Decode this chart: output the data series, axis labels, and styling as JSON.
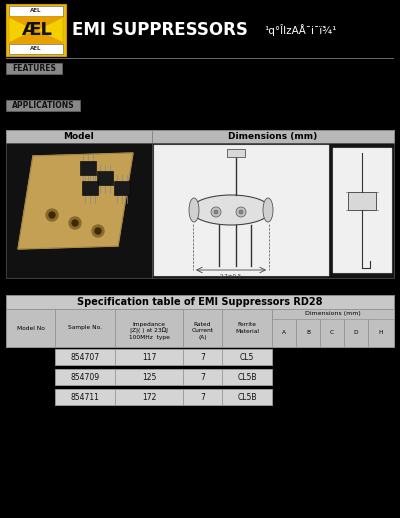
{
  "bg_color": "#000000",
  "header_title": "EMI SUPPRESSORS",
  "header_subtitle": "¹q°ÎIzAÅ¯i¯ï¾¹",
  "features_label": "FEATURES",
  "applications_label": "APPLICATIONS",
  "model_label": "Model",
  "dimensions_label": "Dimensions (mm)",
  "table_title": "Specification table of EMI Suppressors RD28",
  "col_headers_main": [
    "Model No",
    "Sample No.",
    "Impedance\n|Z|(  ) at 23ΩJ\n100MHz  type",
    "Rated\nCurrent\n(A)",
    "Ferrite\nMaterial"
  ],
  "col_headers_dim": [
    "A",
    "B",
    "C",
    "D",
    "H"
  ],
  "rows": [
    [
      "854707",
      "117",
      "7",
      "CL5"
    ],
    [
      "854709",
      "125",
      "7",
      "CL5B"
    ],
    [
      "854711",
      "172",
      "7",
      "CL5B"
    ]
  ],
  "logo_yellow": "#f0bb00",
  "logo_yellow2": "#f5d000",
  "logo_border": "#c89800",
  "header_line_color": "#555555",
  "features_bg": "#888888",
  "applications_bg": "#888888",
  "panel_header_bg": "#b8b8b8",
  "panel_header_ec": "#888888",
  "drawing_bg": "#e8e8e8",
  "drawing_dark_bg": "#101010",
  "photo_bg": "#c0a060",
  "table_title_bg": "#c8c8c8",
  "table_header_bg": "#c0c0c0",
  "table_row_bg": "#d4d4d4",
  "table_ec": "#888888"
}
